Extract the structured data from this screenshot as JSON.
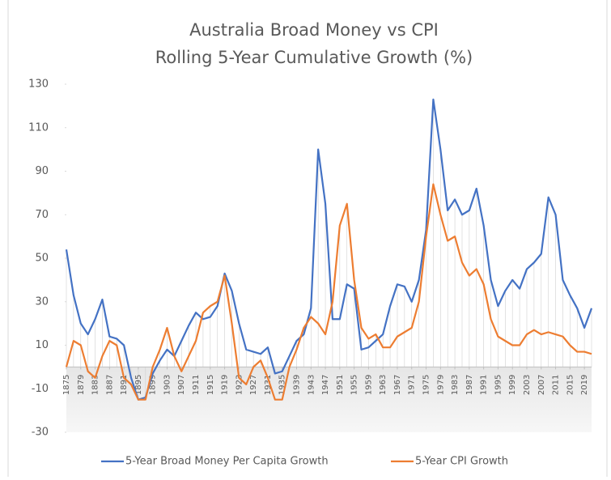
{
  "chart_data": {
    "type": "line",
    "title": "Australia Broad Money vs CPI",
    "subtitle": "Rolling 5-Year Cumulative Growth (%)",
    "x": [
      1875,
      1877,
      1879,
      1881,
      1883,
      1885,
      1887,
      1889,
      1891,
      1893,
      1895,
      1897,
      1899,
      1901,
      1903,
      1905,
      1907,
      1909,
      1911,
      1913,
      1915,
      1917,
      1919,
      1921,
      1923,
      1925,
      1927,
      1929,
      1931,
      1933,
      1935,
      1937,
      1939,
      1941,
      1943,
      1945,
      1947,
      1949,
      1951,
      1953,
      1955,
      1957,
      1959,
      1961,
      1963,
      1965,
      1967,
      1969,
      1971,
      1973,
      1975,
      1977,
      1979,
      1981,
      1983,
      1985,
      1987,
      1989,
      1991,
      1993,
      1995,
      1997,
      1999,
      2001,
      2003,
      2005,
      2007,
      2009,
      2011,
      2013,
      2015,
      2017,
      2019,
      2021
    ],
    "series": [
      {
        "name": "5-Year Broad Money Per Capita Growth",
        "color": "#4472c4",
        "values": [
          54,
          33,
          20,
          15,
          22,
          31,
          14,
          13,
          10,
          -5,
          -15,
          -14,
          -3,
          3,
          8,
          5,
          12,
          19,
          25,
          22,
          23,
          28,
          43,
          35,
          20,
          8,
          7,
          6,
          9,
          -3,
          -2,
          5,
          12,
          15,
          27,
          100,
          75,
          22,
          22,
          38,
          36,
          8,
          9,
          12,
          15,
          28,
          38,
          37,
          30,
          40,
          63,
          123,
          100,
          72,
          77,
          70,
          72,
          82,
          65,
          40,
          28,
          35,
          40,
          36,
          45,
          48,
          52,
          78,
          70,
          40,
          33,
          27,
          18,
          27
        ]
      },
      {
        "name": "5-Year CPI Growth",
        "color": "#ed7d31",
        "values": [
          0,
          12,
          10,
          -2,
          -5,
          5,
          12,
          10,
          -5,
          -8,
          -15,
          -15,
          0,
          8,
          18,
          5,
          -2,
          5,
          12,
          25,
          28,
          30,
          42,
          20,
          -5,
          -8,
          0,
          3,
          -5,
          -15,
          -15,
          0,
          8,
          18,
          23,
          20,
          15,
          30,
          65,
          75,
          40,
          18,
          13,
          15,
          9,
          9,
          14,
          16,
          18,
          30,
          60,
          84,
          70,
          58,
          60,
          48,
          42,
          45,
          38,
          22,
          14,
          12,
          10,
          10,
          15,
          17,
          15,
          16,
          15,
          14,
          10,
          7,
          7,
          6
        ]
      }
    ],
    "xlim": [
      1875,
      2021
    ],
    "xticks": [
      1875,
      1879,
      1883,
      1887,
      1891,
      1895,
      1899,
      1903,
      1907,
      1911,
      1915,
      1919,
      1923,
      1927,
      1931,
      1935,
      1939,
      1943,
      1947,
      1951,
      1955,
      1959,
      1963,
      1967,
      1971,
      1975,
      1979,
      1983,
      1987,
      1991,
      1995,
      1999,
      2003,
      2007,
      2011,
      2015,
      2019
    ],
    "ylim": [
      -30,
      130
    ],
    "yticks": [
      -30,
      -10,
      10,
      30,
      50,
      70,
      90,
      110,
      130
    ],
    "legend": "bottom"
  }
}
